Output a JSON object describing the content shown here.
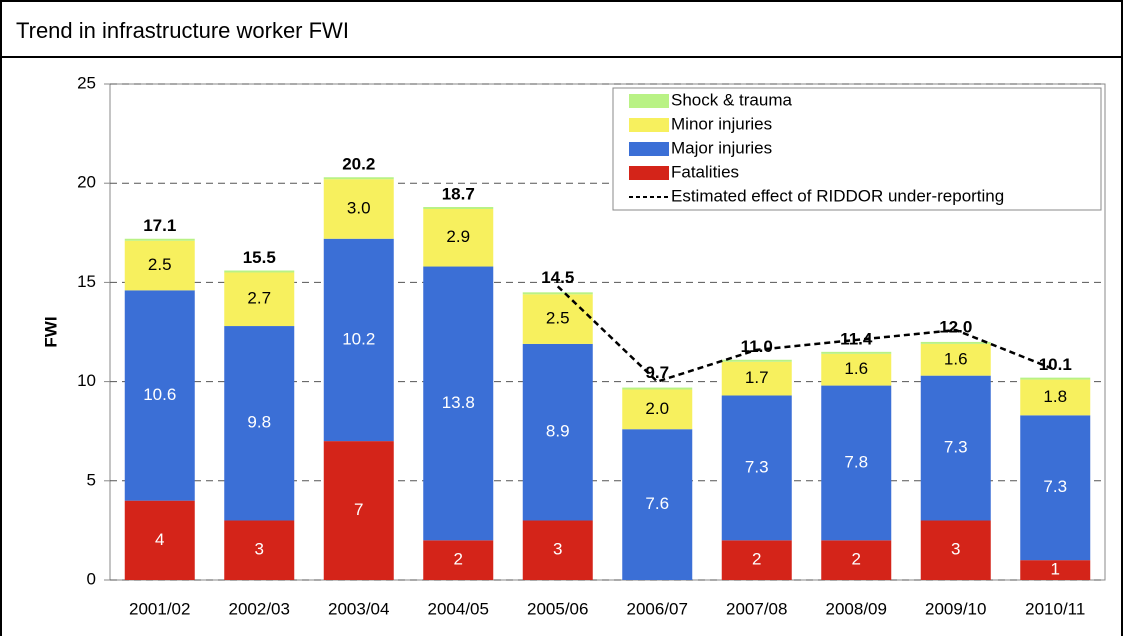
{
  "chart_data": {
    "type": "stacked_bar",
    "title": "Trend in infrastructure worker FWI",
    "y_label": "FWI",
    "categories": [
      "2001/02",
      "2002/03",
      "2003/04",
      "2004/05",
      "2005/06",
      "2006/07",
      "2007/08",
      "2008/09",
      "2009/10",
      "2010/11"
    ],
    "series": [
      {
        "name": "Fatalities",
        "color": "#d42419",
        "values": [
          4,
          3,
          7,
          2,
          3,
          0,
          2,
          2,
          3,
          1
        ]
      },
      {
        "name": "Major injuries",
        "color": "#3b6fd6",
        "values": [
          10.6,
          9.8,
          10.2,
          13.8,
          8.9,
          7.6,
          7.3,
          7.8,
          7.3,
          7.3
        ]
      },
      {
        "name": "Minor injuries",
        "color": "#f7f05e",
        "values": [
          2.5,
          2.7,
          3.0,
          2.9,
          2.5,
          2.0,
          1.7,
          1.6,
          1.6,
          1.8
        ],
        "value_labels": [
          "2.5",
          "2.7",
          "3.0",
          "2.9",
          "2.5",
          "2.0",
          "1.7",
          "1.6",
          "1.6",
          "1.8"
        ]
      },
      {
        "name": "Shock & trauma",
        "color": "#b9f285",
        "values": [
          0.1,
          0.1,
          0.1,
          0.1,
          0.1,
          0.1,
          0.1,
          0.1,
          0.1,
          0.1
        ]
      },
      {
        "name": "Estimated effect of RIDDOR under-reporting",
        "type": "line",
        "color": "#000000",
        "dashed": true,
        "values": [
          null,
          null,
          null,
          null,
          14.8,
          10.0,
          11.6,
          12.1,
          12.6,
          10.6
        ]
      }
    ],
    "totals": [
      17.1,
      15.5,
      20.2,
      18.7,
      14.5,
      9.7,
      11.0,
      11.4,
      12.0,
      10.1
    ],
    "total_labels": [
      "17.1",
      "15.5",
      "20.2",
      "18.7",
      "14.5",
      "9.7",
      "11.0",
      "11.4",
      "12.0",
      "10.1"
    ],
    "ylim": [
      0,
      25
    ],
    "yticks": [
      0,
      5,
      10,
      15,
      20,
      25
    ],
    "grid": true,
    "legend": "upper right"
  }
}
